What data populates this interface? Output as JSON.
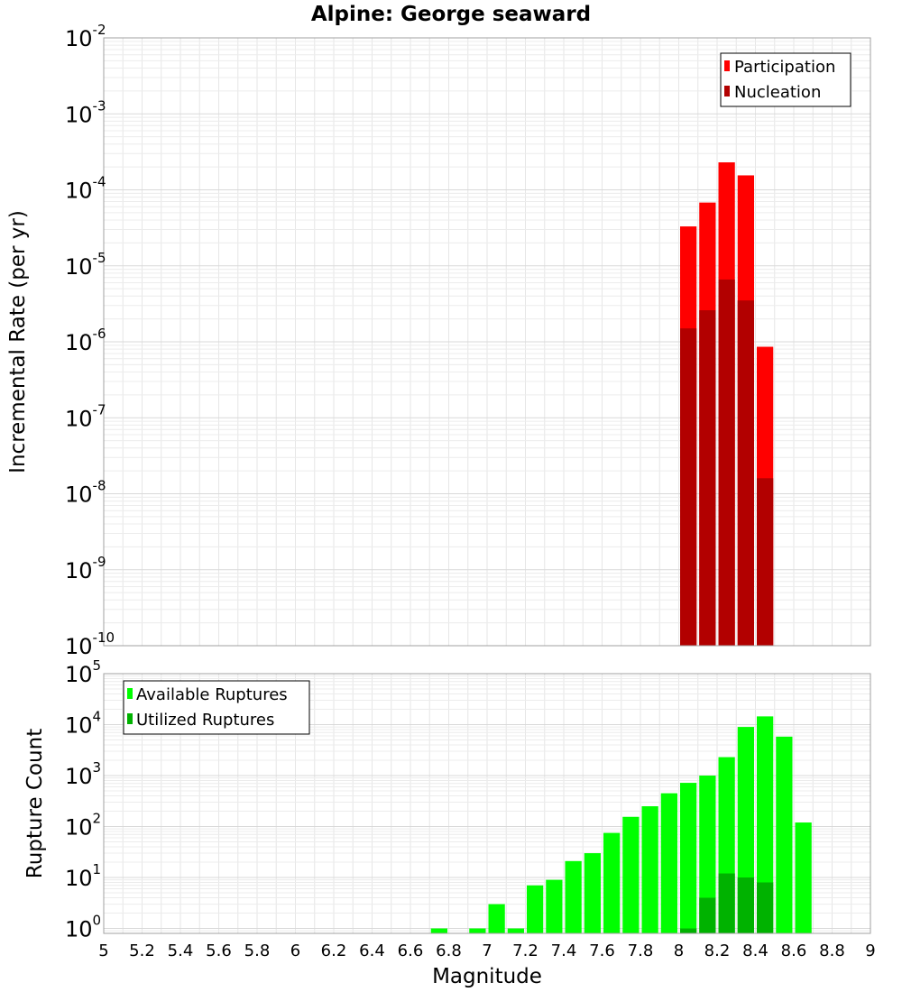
{
  "chart_data": [
    {
      "type": "bar",
      "title": "Alpine: George seaward",
      "xlabel": "",
      "ylabel": "Incremental Rate (per yr)",
      "yscale": "log",
      "ylim": [
        1e-10,
        0.01
      ],
      "xlim": [
        5,
        9
      ],
      "bin_width": 0.1,
      "legend_position": "top-right",
      "colors": {
        "Participation": "#ff0000",
        "Nucleation": "#b20000"
      },
      "categories": [
        8.05,
        8.15,
        8.25,
        8.35,
        8.45
      ],
      "series": [
        {
          "name": "Participation",
          "values": [
            3.3e-05,
            6.8e-05,
            0.00023,
            0.000155,
            8.6e-07
          ]
        },
        {
          "name": "Nucleation",
          "values": [
            1.5e-06,
            2.6e-06,
            6.6e-06,
            3.5e-06,
            1.6e-08
          ]
        }
      ],
      "ytick_labels": [
        {
          "base": "10",
          "exp": "-10"
        },
        {
          "base": "10",
          "exp": "-9"
        },
        {
          "base": "10",
          "exp": "-8"
        },
        {
          "base": "10",
          "exp": "-7"
        },
        {
          "base": "10",
          "exp": "-6"
        },
        {
          "base": "10",
          "exp": "-5"
        },
        {
          "base": "10",
          "exp": "-4"
        },
        {
          "base": "10",
          "exp": "-3"
        },
        {
          "base": "10",
          "exp": "-2"
        }
      ]
    },
    {
      "type": "bar",
      "title": "",
      "xlabel": "Magnitude",
      "ylabel": "Rupture Count",
      "yscale": "log",
      "ylim": [
        0.8,
        100000
      ],
      "xlim": [
        5,
        9
      ],
      "bin_width": 0.1,
      "legend_position": "top-left",
      "colors": {
        "Available Ruptures": "#00ff00",
        "Utilized Ruptures": "#00b200"
      },
      "categories": [
        6.75,
        6.85,
        6.95,
        7.05,
        7.15,
        7.25,
        7.35,
        7.45,
        7.55,
        7.65,
        7.75,
        7.85,
        7.95,
        8.05,
        8.15,
        8.25,
        8.35,
        8.45,
        8.55,
        8.65
      ],
      "series": [
        {
          "name": "Available Ruptures",
          "values": [
            1,
            0,
            1,
            3,
            1,
            7,
            9,
            21,
            30,
            75,
            155,
            250,
            450,
            720,
            1000,
            2300,
            9000,
            14500,
            5800,
            120
          ]
        },
        {
          "name": "Utilized Ruptures",
          "values": [
            0,
            0,
            0,
            0,
            0,
            0,
            0,
            0,
            0,
            0,
            0,
            0,
            0,
            1,
            4,
            12,
            10,
            8,
            0,
            0
          ]
        }
      ],
      "ytick_labels": [
        {
          "base": "10",
          "exp": "0"
        },
        {
          "base": "10",
          "exp": "1"
        },
        {
          "base": "10",
          "exp": "2"
        },
        {
          "base": "10",
          "exp": "3"
        },
        {
          "base": "10",
          "exp": "4"
        },
        {
          "base": "10",
          "exp": "5"
        }
      ],
      "xtick_labels": [
        "5",
        "5.2",
        "5.4",
        "5.6",
        "5.8",
        "6",
        "6.2",
        "6.4",
        "6.6",
        "6.8",
        "7",
        "7.2",
        "7.4",
        "7.6",
        "7.8",
        "8",
        "8.2",
        "8.4",
        "8.6",
        "8.8",
        "9"
      ]
    }
  ]
}
